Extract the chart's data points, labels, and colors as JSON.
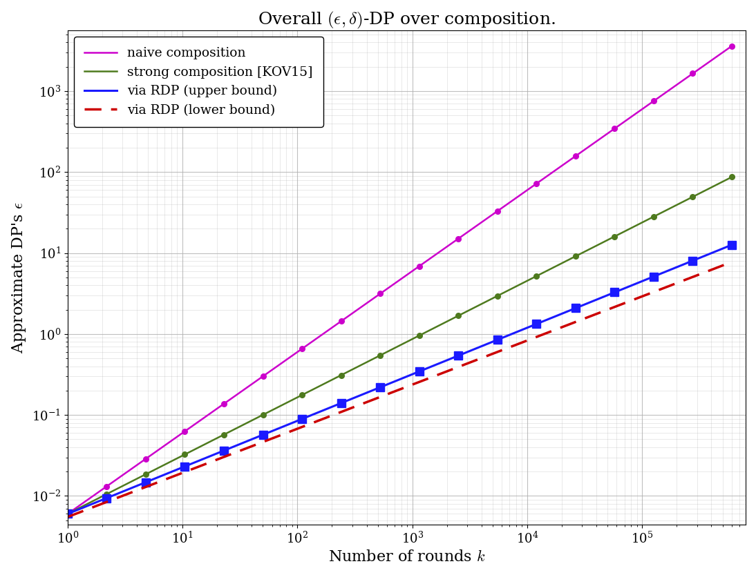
{
  "title": "Overall $(\\epsilon, \\delta)$-DP over composition.",
  "xlabel": "Number of rounds $k$",
  "ylabel": "Approximate DP's $\\epsilon$",
  "naive_color": "#cc00cc",
  "strong_color": "#4e7a1e",
  "rdp_upper_color": "#1a1aff",
  "rdp_lower_color": "#cc0000",
  "legend_labels": [
    "naive composition",
    "strong composition [KOV15]",
    "via RDP (upper bound)",
    "via RDP (lower bound)"
  ],
  "background_color": "#ffffff",
  "grid_color": "#b0b0b0",
  "naive_base": 0.006,
  "strong_coeff": 0.006,
  "strong_exp": 0.72,
  "rdp_upper_coeff": 0.006,
  "rdp_upper_exp": 0.575,
  "rdp_lower_coeff": 0.0055,
  "rdp_lower_exp": 0.545
}
